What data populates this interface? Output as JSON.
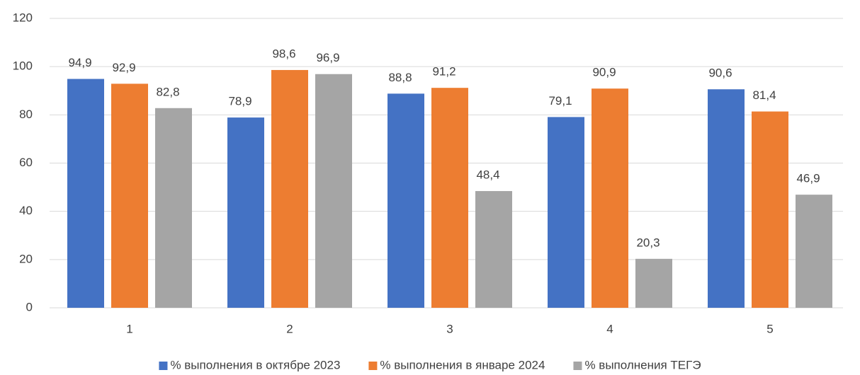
{
  "chart_data": {
    "type": "bar",
    "categories": [
      "1",
      "2",
      "3",
      "4",
      "5"
    ],
    "series": [
      {
        "name": "% выполнения в  октябре 2023",
        "color": "#4472c4",
        "values": [
          94.9,
          78.9,
          88.8,
          79.1,
          90.6
        ],
        "value_labels": [
          "94,9",
          "78,9",
          "88,8",
          "79,1",
          "90,6"
        ]
      },
      {
        "name": "% выполнения в  январе 2024",
        "color": "#ed7d31",
        "values": [
          92.9,
          98.6,
          91.2,
          90.9,
          81.4
        ],
        "value_labels": [
          "92,9",
          "98,6",
          "91,2",
          "90,9",
          "81,4"
        ]
      },
      {
        "name": "% выполнения ТЕГЭ",
        "color": "#a5a5a5",
        "values": [
          82.8,
          96.9,
          48.4,
          20.3,
          46.9
        ],
        "value_labels": [
          "82,8",
          "96,9",
          "48,4",
          "20,3",
          "46,9"
        ]
      }
    ],
    "ylim": [
      0,
      120
    ],
    "yticks": [
      0,
      20,
      40,
      60,
      80,
      100,
      120
    ],
    "grid": true,
    "legend": "bottom"
  }
}
